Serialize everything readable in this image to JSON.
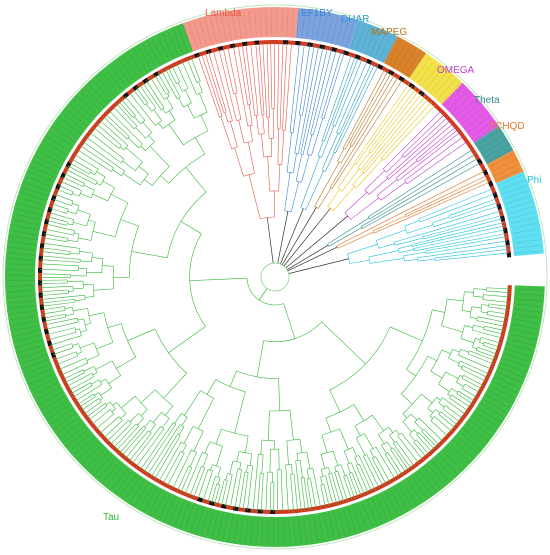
{
  "clades": [
    {
      "name": "Lambda",
      "color": "#e8574a",
      "fill": "#f49a8c"
    },
    {
      "name": "EF1BY",
      "color": "#3d86d6",
      "fill": "#7aa3e0"
    },
    {
      "name": "DHAR",
      "color": "#2e9fc4",
      "fill": "#5fb3d6"
    },
    {
      "name": "MAPEG",
      "color": "#b8751c",
      "fill": "#d9822b"
    },
    {
      "name": "",
      "color": "#e6c619",
      "fill": "#f3e14a"
    },
    {
      "name": "OMEGA",
      "color": "#c23fc9",
      "fill": "#e25ae6"
    },
    {
      "name": "Theta",
      "color": "#2e8a8a",
      "fill": "#4aa3a3"
    },
    {
      "name": "TCHQD",
      "color": "#e07a2b",
      "fill": "#f0903c"
    },
    {
      "name": "Phi",
      "color": "#21c4e0",
      "fill": "#5fe0f2"
    },
    {
      "name": "Tau",
      "color": "#35b83a",
      "fill": "#3fbf45"
    }
  ],
  "colors": {
    "outer_ring": "#3fbf45",
    "inner_ring": "#d23a1f",
    "branch_default": "#7fd07f"
  }
}
